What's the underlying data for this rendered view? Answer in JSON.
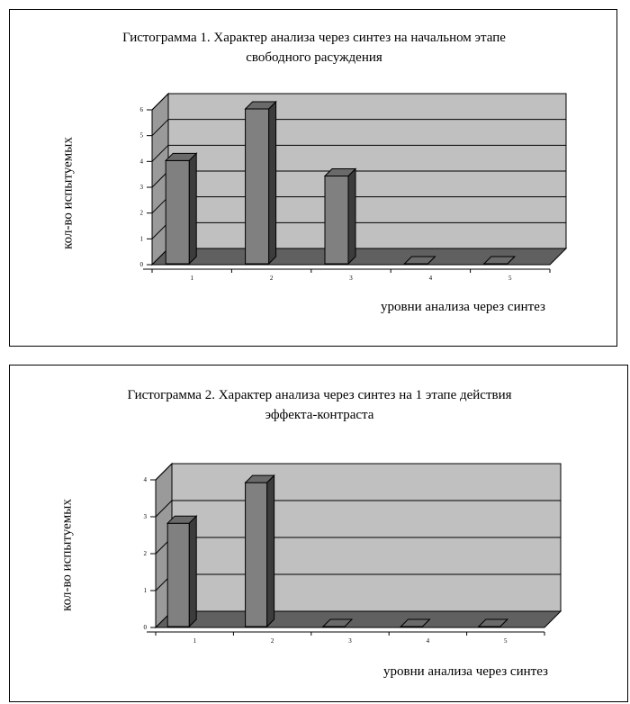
{
  "chart_data": [
    {
      "type": "bar",
      "title_line1": "Гистограмма 1. Характер анализа через синтез на начальном этапе",
      "title_line2": "свободного расуждения",
      "xlabel": "уровни анализа через синтез",
      "ylabel": "кол-во испытуемых",
      "categories": [
        "1",
        "2",
        "3",
        "4",
        "5"
      ],
      "values": [
        4,
        6,
        3.4,
        0,
        0
      ],
      "ylim": [
        0,
        6
      ],
      "yticks": [
        0,
        1,
        2,
        3,
        4,
        5,
        6
      ],
      "grid": true,
      "legend": "none"
    },
    {
      "type": "bar",
      "title_line1": "Гистограмма 2. Характер анализа через синтез на 1 этапе действия",
      "title_line2": "эффекта-контраста",
      "xlabel": "уровни анализа через синтез",
      "ylabel": "кол-во испытуемых",
      "categories": [
        "1",
        "2",
        "3",
        "4",
        "5"
      ],
      "values": [
        2.8,
        3.9,
        0,
        0,
        0
      ],
      "ylim": [
        0,
        4
      ],
      "yticks": [
        0,
        1,
        2,
        3,
        4
      ],
      "grid": true,
      "legend": "none"
    }
  ],
  "colors": {
    "wall": "#c0c0c0",
    "floor": "#606060",
    "bar_front": "#808080",
    "bar_top": "#6a6a6a",
    "bar_side": "#3c3c3c"
  }
}
